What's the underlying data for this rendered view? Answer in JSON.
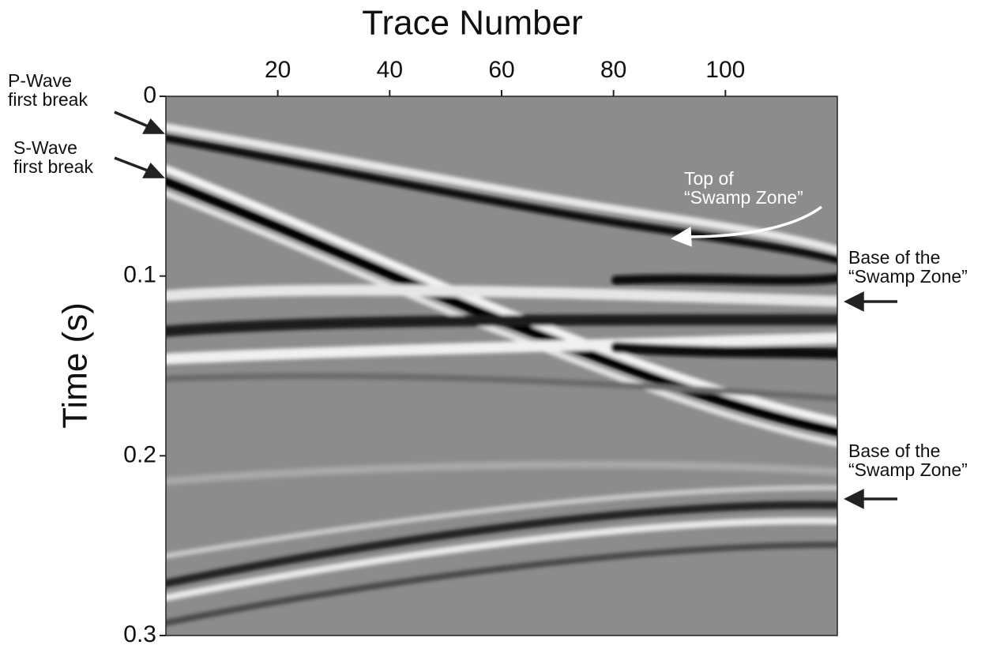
{
  "chart_data": {
    "type": "seismic",
    "title": "Trace Number",
    "y_label": "Time (s)",
    "xlim": [
      0,
      120
    ],
    "xticks": [
      20,
      40,
      60,
      80,
      100
    ],
    "ylim": [
      0,
      0.3
    ],
    "yticks": [
      0,
      0.1,
      0.2,
      0.3
    ],
    "annotations": [
      {
        "lines": [
          "P-Wave",
          "first break"
        ]
      },
      {
        "lines": [
          "S-Wave",
          "first break"
        ]
      },
      {
        "lines": [
          "Top of",
          "“Swamp Zone”"
        ]
      },
      {
        "lines": [
          "Base of the",
          "“Swamp Zone”"
        ]
      },
      {
        "lines": [
          "Base of the",
          "“Swamp Zone”"
        ]
      }
    ]
  }
}
